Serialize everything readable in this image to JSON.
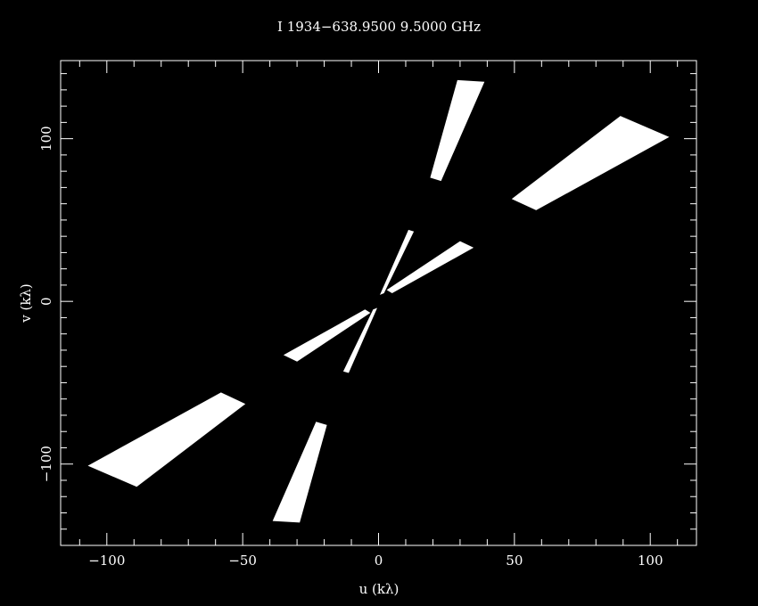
{
  "chart_data": {
    "type": "scatter",
    "title": "I 1934−638.9500  9.5000  GHz",
    "xlabel": "u (kλ)",
    "ylabel": "v (kλ)",
    "xlim": [
      -117,
      117
    ],
    "ylim": [
      -150,
      148
    ],
    "xticks_major": [
      -100,
      -50,
      0,
      50,
      100
    ],
    "xtick_labels": [
      "−100",
      "−50",
      "0",
      "50",
      "100"
    ],
    "yticks_major": [
      -100,
      0,
      100
    ],
    "ytick_labels": [
      "−100",
      "0",
      "100"
    ],
    "minor_tick_step": 10,
    "grid": false,
    "background": "#000000",
    "foreground": "#ffffff",
    "series": [
      {
        "polygons": [
          [
            [
              89,
              114
            ],
            [
              107,
              101
            ],
            [
              58,
              56
            ],
            [
              49,
              63
            ]
          ],
          [
            [
              -89,
              -114
            ],
            [
              -107,
              -101
            ],
            [
              -58,
              -56
            ],
            [
              -49,
              -63
            ]
          ],
          [
            [
              30,
              37
            ],
            [
              35,
              33
            ],
            [
              5,
              5
            ],
            [
              3,
              7
            ]
          ],
          [
            [
              -30,
              -37
            ],
            [
              -35,
              -33
            ],
            [
              -5,
              -5
            ],
            [
              -3,
              -7
            ]
          ],
          [
            [
              11,
              44
            ],
            [
              13,
              43
            ],
            [
              2,
              5
            ],
            [
              0.5,
              4
            ]
          ],
          [
            [
              -11,
              -44
            ],
            [
              -13,
              -43
            ],
            [
              -2,
              -5
            ],
            [
              -0.5,
              -4
            ]
          ],
          [
            [
              29,
              136
            ],
            [
              39,
              135
            ],
            [
              23,
              74
            ],
            [
              19,
              76
            ]
          ],
          [
            [
              -29,
              -136
            ],
            [
              -39,
              -135
            ],
            [
              -23,
              -74
            ],
            [
              -19,
              -76
            ]
          ]
        ]
      }
    ]
  }
}
